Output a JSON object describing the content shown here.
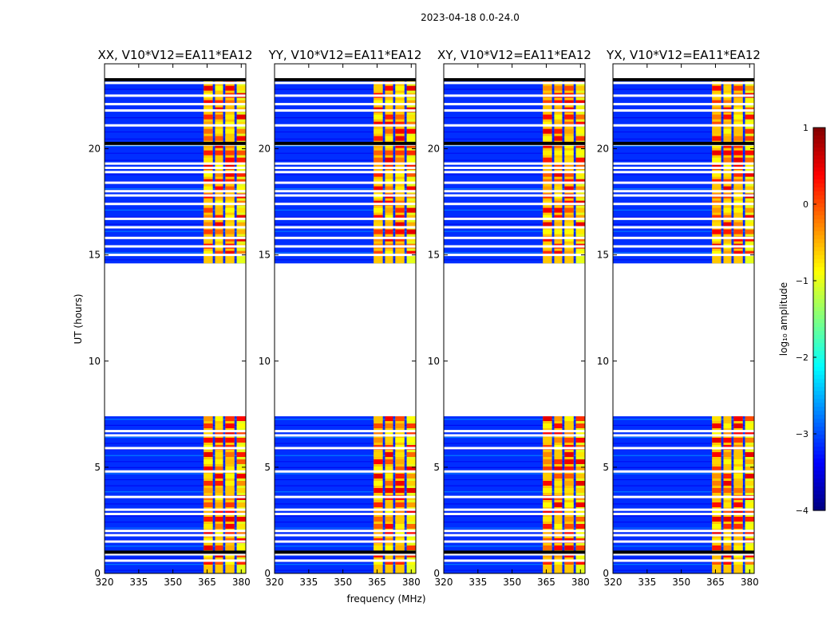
{
  "suptitle": "2023-04-18 0.0-24.0",
  "chart_data": {
    "type": "heatmap",
    "description_free": true,
    "xlabel": "frequency (MHz)",
    "ylabel": "UT (hours)",
    "xlim": [
      320,
      382
    ],
    "ylim": [
      0,
      24
    ],
    "xticks": [
      320,
      335,
      350,
      365,
      380
    ],
    "yticks": [
      0,
      5,
      10,
      15,
      20
    ],
    "observed_time_ranges": [
      [
        0,
        7.4
      ],
      [
        14.6,
        23.3
      ]
    ],
    "band_columns_mhz": [
      [
        363.5,
        367.5
      ],
      [
        368.5,
        372
      ],
      [
        373,
        377
      ],
      [
        378,
        382
      ]
    ],
    "flagged_rows_hours": [
      0.6,
      0.9,
      1.0,
      1.5,
      1.8,
      2.0,
      2.8,
      3.0,
      3.6,
      4.8,
      5.9,
      6.5,
      6.7,
      15.0,
      15.4,
      15.8,
      16.3,
      16.7,
      17.4,
      17.8,
      18.0,
      18.4,
      18.9,
      19.1,
      19.3,
      20.2,
      21.1,
      21.8,
      22.1,
      22.5,
      23.1
    ],
    "panels": [
      {
        "title": "XX, V10*V12=EA11*EA12"
      },
      {
        "title": "YY, V10*V12=EA11*EA12"
      },
      {
        "title": "XY, V10*V12=EA11*EA12"
      },
      {
        "title": "YX, V10*V12=EA11*EA12"
      }
    ],
    "colorbar": {
      "label": "log₁₀ amplitude",
      "range": [
        -4,
        1
      ],
      "ticks": [
        1,
        0,
        -1,
        -2,
        -3,
        -4
      ],
      "colormap": "jet"
    }
  }
}
